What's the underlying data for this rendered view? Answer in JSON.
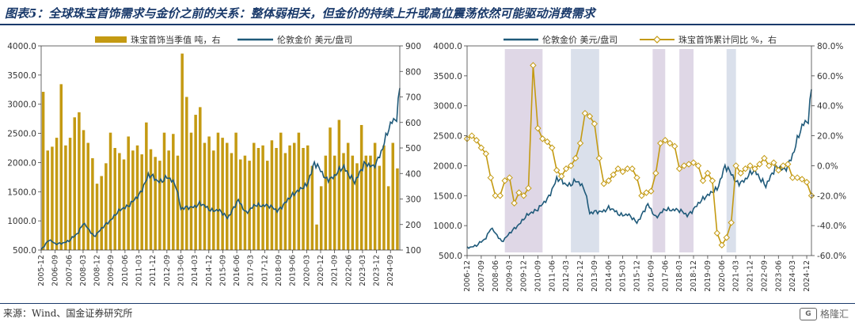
{
  "figure": {
    "title": "图表5：全球珠宝首饰需求与金价之前的关系：整体弱相关，但金价的持续上升或高位震荡依然可能驱动消费需求",
    "source": "来源：Wind、国金证券研究所",
    "watermark": "格隆汇"
  },
  "chart_data": [
    {
      "type": "bar",
      "legend": [
        "珠宝首饰当季值 吨，右",
        "伦敦金价 美元/盘司"
      ],
      "colors": {
        "bars": "#C49A12",
        "line": "#1F5A7A"
      },
      "y_left": {
        "ticks": [
          "500.0",
          "1000.0",
          "1500.0",
          "2000.0",
          "2500.0",
          "3000.0",
          "3500.0",
          "4000.0"
        ],
        "range": [
          500,
          4000
        ]
      },
      "y_right": {
        "ticks": [
          "100",
          "200",
          "300",
          "400",
          "500",
          "600",
          "700",
          "800",
          "900"
        ],
        "range": [
          100,
          900
        ]
      },
      "x_ticks": [
        "2005-12",
        "2006-09",
        "2007-06",
        "2008-03",
        "2008-12",
        "2009-09",
        "2010-06",
        "2011-03",
        "2011-12",
        "2012-09",
        "2013-06",
        "2014-03",
        "2014-12",
        "2015-09",
        "2016-06",
        "2017-03",
        "2017-12",
        "2018-09",
        "2019-06",
        "2020-03",
        "2020-12",
        "2021-09",
        "2022-06",
        "2023-03",
        "2023-12",
        "2024-09"
      ],
      "bar_series": {
        "name": "珠宝首饰当季值",
        "x_start": "2005-Q4",
        "frequency": "quarterly",
        "values": [
          720,
          490,
          505,
          540,
          750,
          510,
          540,
          620,
          640,
          570,
          520,
          460,
          360,
          390,
          440,
          560,
          500,
          480,
          455,
          545,
          490,
          510,
          475,
          600,
          495,
          465,
          450,
          560,
          490,
          555,
          470,
          870,
          700,
          560,
          630,
          660,
          520,
          545,
          490,
          560,
          540,
          520,
          480,
          560,
          455,
          470,
          450,
          520,
          500,
          510,
          450,
          530,
          500,
          560,
          480,
          510,
          520,
          560,
          500,
          510,
          430,
          200,
          350,
          470,
          580,
          470,
          610,
          480,
          520,
          470,
          440,
          590,
          470,
          470,
          520,
          430,
          510,
          350,
          520,
          420
        ]
      },
      "line_series": {
        "name": "伦敦金价",
        "frequency": "monthly",
        "x_start": "2005-12",
        "x_end": "2025-03",
        "anchors": [
          [
            "2005-12",
            510
          ],
          [
            "2006-05",
            680
          ],
          [
            "2006-09",
            600
          ],
          [
            "2007-06",
            650
          ],
          [
            "2007-12",
            810
          ],
          [
            "2008-03",
            960
          ],
          [
            "2008-10",
            740
          ],
          [
            "2009-06",
            940
          ],
          [
            "2009-12",
            1120
          ],
          [
            "2010-06",
            1230
          ],
          [
            "2011-03",
            1420
          ],
          [
            "2011-09",
            1800
          ],
          [
            "2012-03",
            1670
          ],
          [
            "2012-09",
            1750
          ],
          [
            "2013-03",
            1600
          ],
          [
            "2013-06",
            1220
          ],
          [
            "2013-12",
            1220
          ],
          [
            "2014-06",
            1300
          ],
          [
            "2014-12",
            1200
          ],
          [
            "2015-06",
            1180
          ],
          [
            "2015-12",
            1060
          ],
          [
            "2016-07",
            1340
          ],
          [
            "2016-12",
            1150
          ],
          [
            "2017-06",
            1260
          ],
          [
            "2017-12",
            1280
          ],
          [
            "2018-08",
            1180
          ],
          [
            "2019-02",
            1320
          ],
          [
            "2019-08",
            1510
          ],
          [
            "2020-03",
            1590
          ],
          [
            "2020-08",
            2020
          ],
          [
            "2021-03",
            1720
          ],
          [
            "2021-09",
            1760
          ],
          [
            "2022-03",
            1940
          ],
          [
            "2022-10",
            1640
          ],
          [
            "2023-04",
            2000
          ],
          [
            "2023-10",
            1900
          ],
          [
            "2024-03",
            2200
          ],
          [
            "2024-10",
            2700
          ],
          [
            "2025-01",
            2800
          ],
          [
            "2025-03",
            3300
          ]
        ]
      }
    },
    {
      "type": "line",
      "legend": [
        "伦敦金价 美元/盘司",
        "珠宝首饰累计同比 %，右"
      ],
      "colors": {
        "gold_line": "#1F5A7A",
        "yoy_line": "#C49A12",
        "band_purple": "#D9D0E2",
        "band_blue": "#D3DBE8"
      },
      "y_left": {
        "ticks": [
          "500.0",
          "1000.0",
          "1500.0",
          "2000.0",
          "2500.0",
          "3000.0",
          "3500.0",
          "4000.0"
        ],
        "range": [
          500,
          4000
        ]
      },
      "y_right": {
        "ticks": [
          "-60.0%",
          "-40.0%",
          "-20.0%",
          "0.0%",
          "20.0%",
          "40.0%",
          "60.0%",
          "80.0%"
        ],
        "range": [
          -60,
          80
        ]
      },
      "x_ticks": [
        "2006-12",
        "2007-09",
        "2008-06",
        "2009-03",
        "2009-12",
        "2010-09",
        "2011-06",
        "2012-03",
        "2012-12",
        "2013-09",
        "2014-06",
        "2015-03",
        "2015-12",
        "2016-09",
        "2017-06",
        "2018-03",
        "2018-12",
        "2019-09",
        "2020-06",
        "2021-03",
        "2021-12",
        "2022-09",
        "2023-06",
        "2024-03",
        "2024-12"
      ],
      "bands": [
        {
          "from": "2008-12",
          "to": "2010-12",
          "tone": "purple"
        },
        {
          "from": "2012-06",
          "to": "2013-12",
          "tone": "blue"
        },
        {
          "from": "2016-10",
          "to": "2017-06",
          "tone": "purple"
        },
        {
          "from": "2018-03",
          "to": "2018-12",
          "tone": "purple"
        },
        {
          "from": "2020-09",
          "to": "2021-03",
          "tone": "blue"
        }
      ],
      "gold_series": {
        "name": "伦敦金价",
        "anchors": [
          [
            "2006-12",
            640
          ],
          [
            "2007-06",
            660
          ],
          [
            "2007-12",
            800
          ],
          [
            "2008-03",
            960
          ],
          [
            "2008-10",
            740
          ],
          [
            "2009-06",
            940
          ],
          [
            "2009-12",
            1120
          ],
          [
            "2010-06",
            1230
          ],
          [
            "2011-03",
            1420
          ],
          [
            "2011-09",
            1800
          ],
          [
            "2012-03",
            1670
          ],
          [
            "2012-09",
            1750
          ],
          [
            "2013-03",
            1600
          ],
          [
            "2013-06",
            1220
          ],
          [
            "2013-12",
            1220
          ],
          [
            "2014-06",
            1300
          ],
          [
            "2014-12",
            1200
          ],
          [
            "2015-06",
            1180
          ],
          [
            "2015-12",
            1060
          ],
          [
            "2016-07",
            1340
          ],
          [
            "2016-12",
            1150
          ],
          [
            "2017-06",
            1260
          ],
          [
            "2017-12",
            1280
          ],
          [
            "2018-08",
            1180
          ],
          [
            "2019-02",
            1320
          ],
          [
            "2019-08",
            1510
          ],
          [
            "2020-03",
            1590
          ],
          [
            "2020-08",
            2020
          ],
          [
            "2021-03",
            1720
          ],
          [
            "2021-09",
            1760
          ],
          [
            "2022-03",
            1940
          ],
          [
            "2022-10",
            1640
          ],
          [
            "2023-04",
            2000
          ],
          [
            "2023-10",
            1900
          ],
          [
            "2024-03",
            2200
          ],
          [
            "2024-10",
            2700
          ],
          [
            "2025-01",
            2800
          ],
          [
            "2025-03",
            3300
          ]
        ]
      },
      "yoy_series": {
        "name": "珠宝首饰累计同比",
        "points": [
          [
            "2006-12",
            18
          ],
          [
            "2007-03",
            20
          ],
          [
            "2007-06",
            17
          ],
          [
            "2007-09",
            12
          ],
          [
            "2007-12",
            8
          ],
          [
            "2008-03",
            -8
          ],
          [
            "2008-06",
            -20
          ],
          [
            "2008-09",
            -20
          ],
          [
            "2008-12",
            -10
          ],
          [
            "2009-03",
            -8
          ],
          [
            "2009-06",
            -25
          ],
          [
            "2009-09",
            -18
          ],
          [
            "2009-12",
            -20
          ],
          [
            "2010-03",
            -15
          ],
          [
            "2010-06",
            67
          ],
          [
            "2010-09",
            25
          ],
          [
            "2010-12",
            18
          ],
          [
            "2011-03",
            16
          ],
          [
            "2011-06",
            12
          ],
          [
            "2011-09",
            -3
          ],
          [
            "2011-12",
            -7
          ],
          [
            "2012-03",
            -2
          ],
          [
            "2012-06",
            0
          ],
          [
            "2012-09",
            5
          ],
          [
            "2012-12",
            15
          ],
          [
            "2013-03",
            35
          ],
          [
            "2013-06",
            33
          ],
          [
            "2013-09",
            28
          ],
          [
            "2013-12",
            5
          ],
          [
            "2014-03",
            -12
          ],
          [
            "2014-06",
            -10
          ],
          [
            "2014-09",
            -6
          ],
          [
            "2014-12",
            -2
          ],
          [
            "2015-03",
            -4
          ],
          [
            "2015-06",
            -2
          ],
          [
            "2015-09",
            -2
          ],
          [
            "2015-12",
            -8
          ],
          [
            "2016-03",
            -20
          ],
          [
            "2016-06",
            -18
          ],
          [
            "2016-09",
            -17
          ],
          [
            "2016-12",
            -5
          ],
          [
            "2017-03",
            15
          ],
          [
            "2017-06",
            17
          ],
          [
            "2017-09",
            15
          ],
          [
            "2017-12",
            13
          ],
          [
            "2018-03",
            -2
          ],
          [
            "2018-06",
            0
          ],
          [
            "2018-09",
            1
          ],
          [
            "2018-12",
            2
          ],
          [
            "2019-03",
            0
          ],
          [
            "2019-06",
            -10
          ],
          [
            "2019-09",
            -5
          ],
          [
            "2019-12",
            -10
          ],
          [
            "2020-03",
            -45
          ],
          [
            "2020-06",
            -53
          ],
          [
            "2020-09",
            -48
          ],
          [
            "2020-12",
            -38
          ],
          [
            "2021-03",
            0
          ],
          [
            "2021-06",
            -5
          ],
          [
            "2021-09",
            -2
          ],
          [
            "2021-12",
            0
          ],
          [
            "2022-03",
            -2
          ],
          [
            "2022-06",
            1
          ],
          [
            "2022-09",
            5
          ],
          [
            "2022-12",
            0
          ],
          [
            "2023-03",
            2
          ],
          [
            "2023-06",
            -3
          ],
          [
            "2023-09",
            0
          ],
          [
            "2023-12",
            1
          ],
          [
            "2024-03",
            -8
          ],
          [
            "2024-06",
            -8
          ],
          [
            "2024-09",
            -9
          ],
          [
            "2024-12",
            -11
          ],
          [
            "2025-03",
            -20
          ]
        ]
      }
    }
  ]
}
